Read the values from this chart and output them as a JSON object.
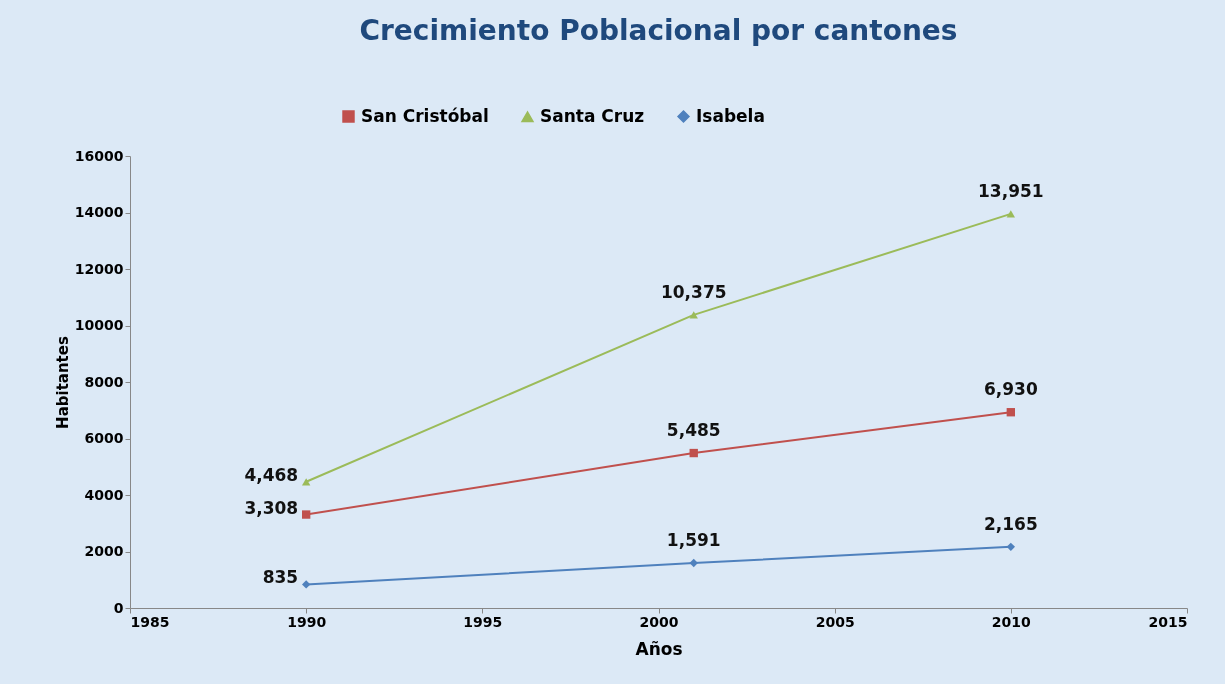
{
  "chart_data": {
    "type": "line",
    "title": "Crecimiento Poblacional por cantones",
    "xlabel": "Años",
    "ylabel": "Habitantes",
    "x": [
      1990,
      2001,
      2010
    ],
    "series": [
      {
        "name": "San Cristóbal",
        "color": "#c0504d",
        "marker": "square",
        "values": [
          3308,
          5485,
          6930
        ],
        "value_labels": [
          "3,308",
          "5,485",
          "6,930"
        ]
      },
      {
        "name": "Santa Cruz",
        "color": "#9bbb59",
        "marker": "triangle",
        "values": [
          4468,
          10375,
          13951
        ],
        "value_labels": [
          "4,468",
          "10,375",
          "13,951"
        ]
      },
      {
        "name": "Isabela",
        "color": "#4f81bd",
        "marker": "diamond",
        "values": [
          835,
          1591,
          2165
        ],
        "value_labels": [
          "835",
          "1,591",
          "2,165"
        ]
      }
    ],
    "xlim": [
      1985,
      2015
    ],
    "xticks": [
      1985,
      1990,
      1995,
      2000,
      2005,
      2010,
      2015
    ],
    "ylim": [
      0,
      16000
    ],
    "yticks": [
      0,
      2000,
      4000,
      6000,
      8000,
      10000,
      12000,
      14000,
      16000
    ],
    "grid": false,
    "legend": "top"
  }
}
